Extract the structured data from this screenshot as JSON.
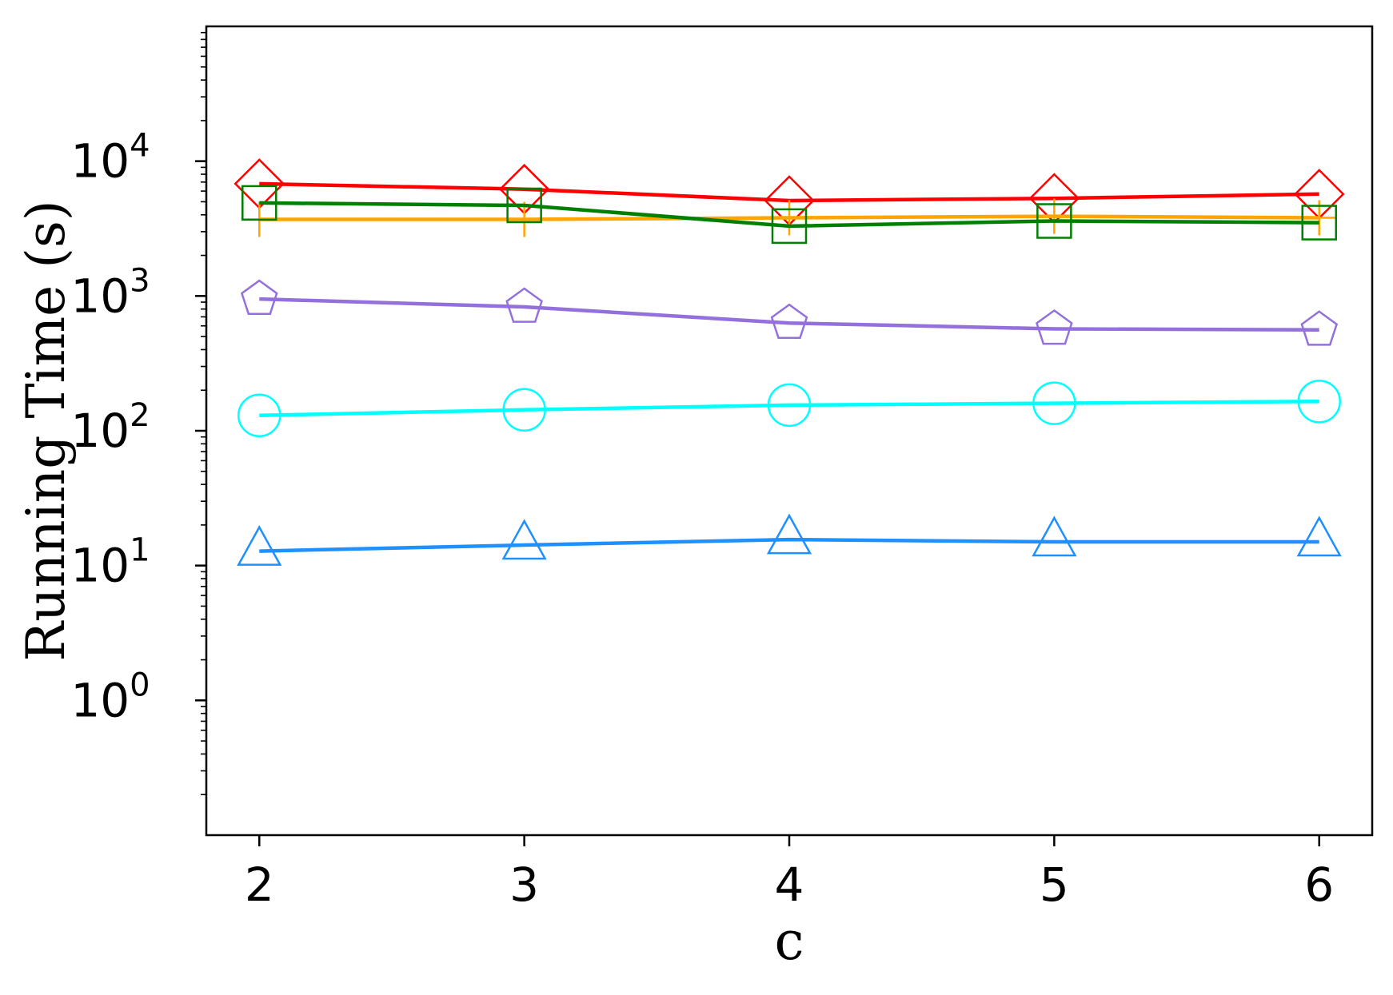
{
  "chart_data": {
    "type": "line",
    "title": "",
    "xlabel": "c",
    "ylabel": "Running Time (s)",
    "x": [
      2,
      3,
      4,
      5,
      6
    ],
    "x_tick_labels": [
      "2",
      "3",
      "4",
      "5",
      "6"
    ],
    "xlim": [
      1.8,
      6.2
    ],
    "y_scale": "log",
    "ylim": [
      0.1,
      100000
    ],
    "y_ticks": [
      {
        "value": 1,
        "base": "10",
        "exp": "0"
      },
      {
        "value": 10,
        "base": "10",
        "exp": "1"
      },
      {
        "value": 100,
        "base": "10",
        "exp": "2"
      },
      {
        "value": 1000,
        "base": "10",
        "exp": "3"
      },
      {
        "value": 10000,
        "base": "10",
        "exp": "4"
      }
    ],
    "grid": false,
    "legend": "none",
    "series": [
      {
        "color": "#ff0000",
        "marker": "diamond",
        "values": [
          6800,
          6200,
          5100,
          5300,
          5700
        ]
      },
      {
        "color": "#ffa500",
        "marker": "plus",
        "values": [
          3700,
          3700,
          3800,
          3900,
          3800
        ]
      },
      {
        "color": "#008000",
        "marker": "square",
        "values": [
          4900,
          4700,
          3300,
          3600,
          3500
        ]
      },
      {
        "color": "#9370db",
        "marker": "pentagon",
        "values": [
          950,
          830,
          630,
          570,
          560
        ]
      },
      {
        "color": "#00ffff",
        "marker": "circle",
        "values": [
          130,
          143,
          155,
          160,
          165
        ]
      },
      {
        "color": "#1e90ff",
        "marker": "triangle",
        "values": [
          12.8,
          14.2,
          15.6,
          15.0,
          15.0
        ]
      }
    ]
  }
}
